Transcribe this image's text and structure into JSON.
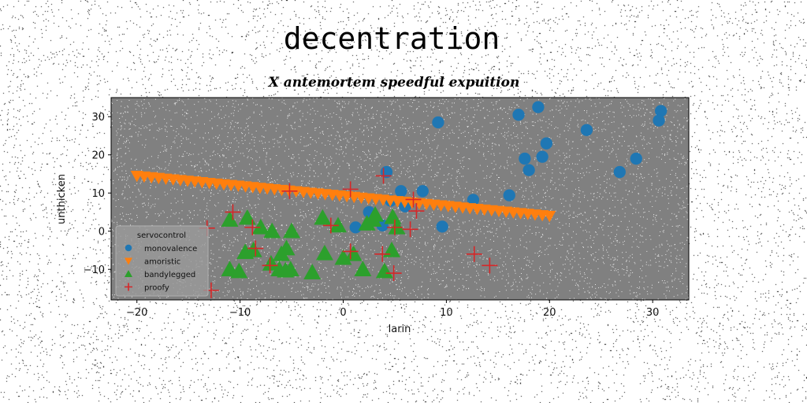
{
  "figure": {
    "suptitle": "decentration",
    "title": "X antemortem speedful expuition"
  },
  "chart_data": {
    "type": "scatter",
    "xlabel": "larin",
    "ylabel": "unthicken",
    "xlim": [
      -22.5,
      33.5
    ],
    "ylim": [
      -18,
      35
    ],
    "xticks": [
      -20,
      -10,
      0,
      10,
      20,
      30
    ],
    "yticks": [
      -10,
      0,
      10,
      20,
      30
    ],
    "xtick_labels": [
      "−20",
      "−10",
      "0",
      "10",
      "20",
      "30"
    ],
    "ytick_labels": [
      "−10",
      "0",
      "10",
      "20",
      "30"
    ],
    "background": "#808080",
    "grid": false,
    "legend": {
      "title": "servocontrol",
      "placement": "lower-left"
    },
    "series": [
      {
        "name": "monovalence",
        "marker": "circle",
        "color": "#1f77b4",
        "points": [
          [
            9.2,
            28.5
          ],
          [
            17,
            30.5
          ],
          [
            18.9,
            32.5
          ],
          [
            30.8,
            31.5
          ],
          [
            30.6,
            29
          ],
          [
            23.6,
            26.5
          ],
          [
            19.7,
            23
          ],
          [
            17.6,
            19
          ],
          [
            19.3,
            19.5
          ],
          [
            18,
            16
          ],
          [
            28.4,
            19
          ],
          [
            26.8,
            15.5
          ],
          [
            4.2,
            15.5
          ],
          [
            5.6,
            10.5
          ],
          [
            7.7,
            10.5
          ],
          [
            12.6,
            8.2
          ],
          [
            16.1,
            9.4
          ],
          [
            4.6,
            8
          ],
          [
            6,
            6.5
          ],
          [
            9.6,
            1.2
          ],
          [
            1.2,
            1
          ],
          [
            3.8,
            1.5
          ],
          [
            2.5,
            5
          ]
        ]
      },
      {
        "name": "amoristic",
        "marker": "triangle-down",
        "color": "#ff7f0e",
        "line": {
          "x_start": -20,
          "x_end": 20,
          "y_start": 14.5,
          "y_end": 4.0,
          "count": 58
        }
      },
      {
        "name": "bandylegged",
        "marker": "triangle-up",
        "color": "#2ca02c",
        "points": [
          [
            -11,
            3
          ],
          [
            -9.3,
            3.5
          ],
          [
            -8,
            1
          ],
          [
            -6.9,
            0
          ],
          [
            -5,
            0
          ],
          [
            -2,
            3.5
          ],
          [
            -0.5,
            1.5
          ],
          [
            2.3,
            2
          ],
          [
            2.9,
            3
          ],
          [
            3.1,
            4.3
          ],
          [
            4.8,
            3.7
          ],
          [
            5.2,
            1
          ],
          [
            -9.5,
            -5.5
          ],
          [
            -8.7,
            -5
          ],
          [
            -6,
            -6
          ],
          [
            -5.5,
            -4.5
          ],
          [
            -1.8,
            -5.8
          ],
          [
            0,
            -7
          ],
          [
            1,
            -6
          ],
          [
            4.7,
            -5
          ],
          [
            -11,
            -10
          ],
          [
            -10.1,
            -10.5
          ],
          [
            -7,
            -8.5
          ],
          [
            -6.2,
            -10
          ],
          [
            -5.6,
            -10.3
          ],
          [
            -5.1,
            -10
          ],
          [
            -3,
            -10.8
          ],
          [
            1.9,
            -10
          ],
          [
            4,
            -10.5
          ]
        ]
      },
      {
        "name": "proofy",
        "marker": "plus",
        "color": "#d62728",
        "points": [
          [
            3.9,
            14.5
          ],
          [
            0.7,
            11
          ],
          [
            -5.2,
            10.5
          ],
          [
            6.8,
            8.3
          ],
          [
            7.1,
            5.3
          ],
          [
            -10.7,
            5
          ],
          [
            -8.8,
            1
          ],
          [
            -1.2,
            1.5
          ],
          [
            5,
            1
          ],
          [
            6.5,
            0.5
          ],
          [
            -13.2,
            0.8
          ],
          [
            -8.5,
            -4.5
          ],
          [
            0.7,
            -5.3
          ],
          [
            3.8,
            -6
          ],
          [
            12.7,
            -6
          ],
          [
            14.2,
            -9
          ],
          [
            -7.1,
            -9
          ],
          [
            4.9,
            -11
          ],
          [
            -12.8,
            -15.5
          ]
        ]
      }
    ]
  }
}
